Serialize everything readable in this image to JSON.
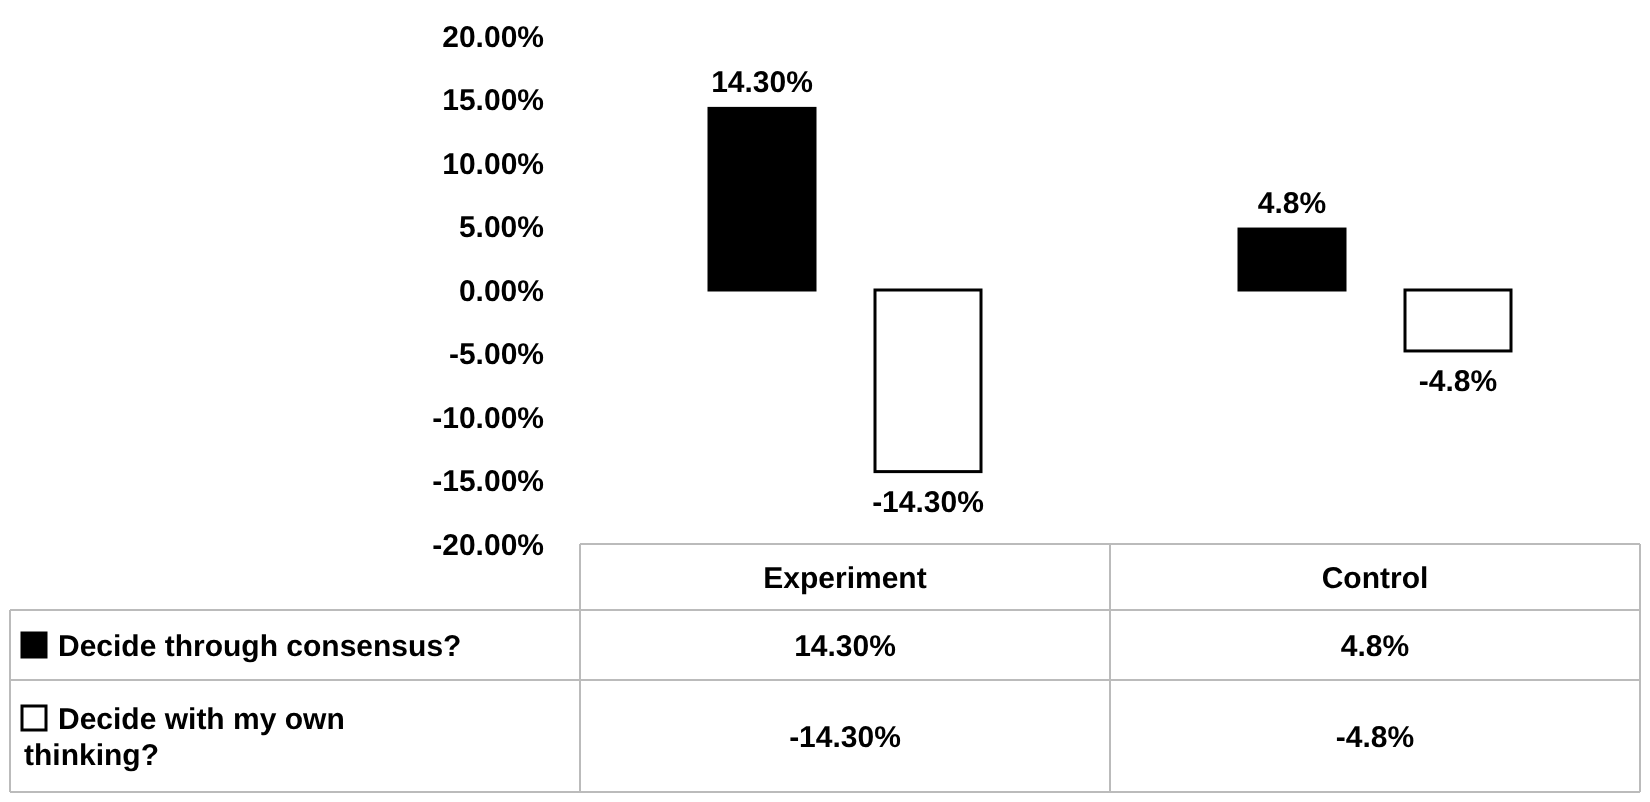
{
  "chart_data": {
    "type": "bar",
    "categories": [
      "Experiment",
      "Control"
    ],
    "series": [
      {
        "name": "Decide through consensus?",
        "color": "#000000",
        "values": [
          14.3,
          4.8
        ],
        "value_labels": [
          "14.30%",
          "4.8%"
        ]
      },
      {
        "name": "Decide with my own thinking?",
        "color": "#ffffff",
        "values": [
          -14.3,
          -4.8
        ],
        "value_labels": [
          "-14.30%",
          "-4.8%"
        ]
      }
    ],
    "ylim": [
      -20,
      20
    ],
    "yticks": [
      {
        "value": 20,
        "label": "20.00%"
      },
      {
        "value": 15,
        "label": "15.00%"
      },
      {
        "value": 10,
        "label": "10.00%"
      },
      {
        "value": 5,
        "label": "5.00%"
      },
      {
        "value": 0,
        "label": "0.00%"
      },
      {
        "value": -5,
        "label": "-5.00%"
      },
      {
        "value": -10,
        "label": "-10.00%"
      },
      {
        "value": -15,
        "label": "-15.00%"
      },
      {
        "value": -20,
        "label": "-20.00%"
      }
    ],
    "grid": false,
    "legend": "bottom"
  }
}
